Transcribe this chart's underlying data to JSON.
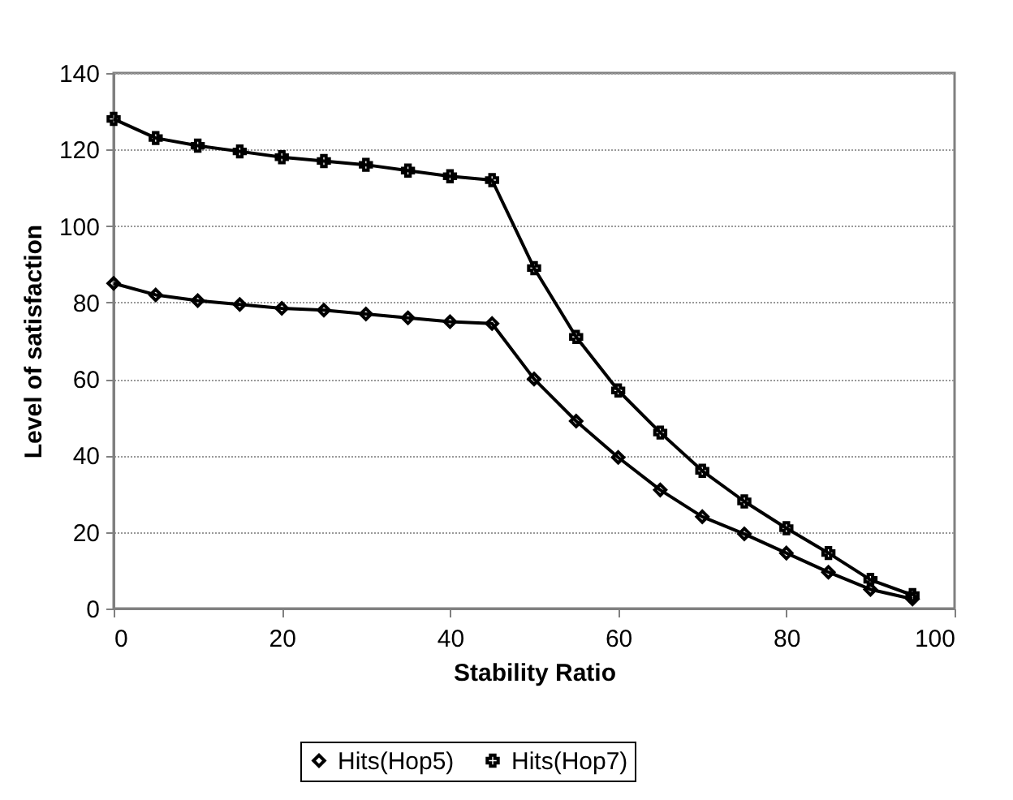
{
  "chart_data": {
    "type": "line",
    "xlabel": "Stability Ratio",
    "ylabel": "Level of satisfaction",
    "x": [
      0,
      5,
      10,
      15,
      20,
      25,
      30,
      35,
      40,
      45,
      50,
      55,
      60,
      65,
      70,
      75,
      80,
      85,
      90,
      95
    ],
    "series": [
      {
        "name": "Hits(Hop5)",
        "color": "#000000",
        "marker": "diamond",
        "values": [
          85,
          82,
          80.5,
          79.5,
          78.5,
          78,
          77,
          76,
          75,
          74.5,
          60,
          49,
          39.5,
          31,
          24,
          19.5,
          14.5,
          9.5,
          5,
          2.5
        ]
      },
      {
        "name": "Hits(Hop7)",
        "color": "#000000",
        "marker": "cross",
        "values": [
          128,
          123,
          121,
          119.5,
          118,
          117,
          116,
          114.5,
          113,
          112,
          89,
          71,
          57,
          46,
          36,
          28,
          21,
          14.5,
          7.5,
          3.5
        ]
      }
    ],
    "xlim": [
      0,
      100
    ],
    "xticks": [
      0,
      20,
      40,
      60,
      80,
      100
    ],
    "ylim": [
      0,
      140
    ],
    "yticks": [
      0,
      20,
      40,
      60,
      80,
      100,
      120,
      140
    ],
    "grid": "y",
    "legend": "bottom",
    "line_style": "solid"
  }
}
